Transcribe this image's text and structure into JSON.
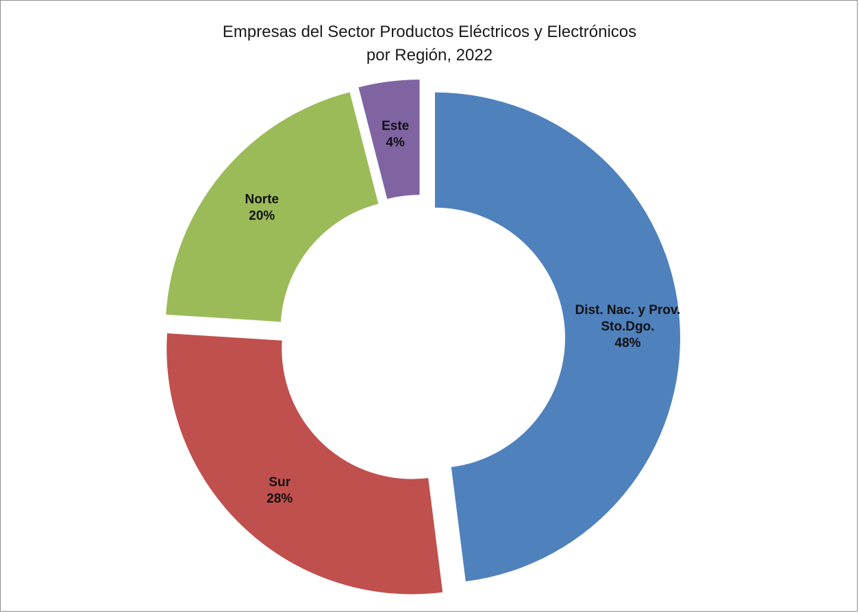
{
  "chart_data": {
    "type": "pie",
    "variant": "donut-exploded",
    "title_lines": [
      "Empresas del Sector Productos Eléctricos y Electrónicos",
      "por Región, 2022"
    ],
    "slices": [
      {
        "label_lines": [
          "Dist. Nac. y  Prov.",
          "Sto.Dgo."
        ],
        "value": 48,
        "display": "48%",
        "color": "#4f81bd"
      },
      {
        "label_lines": [
          "Sur"
        ],
        "value": 28,
        "display": "28%",
        "color": "#c0504d"
      },
      {
        "label_lines": [
          "Norte"
        ],
        "value": 20,
        "display": "20%",
        "color": "#9bbb59"
      },
      {
        "label_lines": [
          "Este"
        ],
        "value": 4,
        "display": "4%",
        "color": "#8064a2"
      }
    ],
    "legend": "none"
  }
}
